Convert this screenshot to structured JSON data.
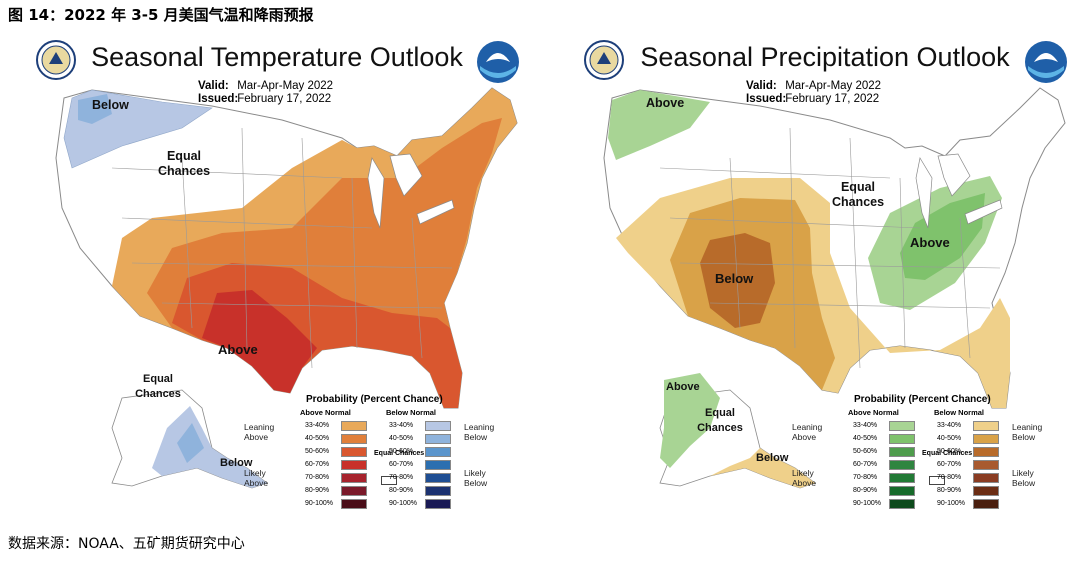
{
  "figure_caption": "图 14：2022 年 3-5 月美国气温和降雨预报",
  "source_note": "数据来源：NOAA、五矿期货研究中心",
  "colors": {
    "above_temp": [
      "#e8a95a",
      "#e07f3a",
      "#d9572f",
      "#c8312a",
      "#a7232d",
      "#7a1a2a",
      "#4a0d18"
    ],
    "below_temp": [
      "#b7c7e4",
      "#8fb3dc",
      "#5b95cc",
      "#2c6fb0",
      "#1f4e93",
      "#1c3270",
      "#1a1a55"
    ],
    "above_precip": [
      "#a8d494",
      "#7fc26c",
      "#4e9c4c",
      "#2f8540",
      "#227a35",
      "#176a2b",
      "#0d4a1c"
    ],
    "below_precip": [
      "#efd08a",
      "#d9a248",
      "#b86b2a",
      "#a85a2f",
      "#8a3c22",
      "#6b2d14",
      "#4a1f0f"
    ]
  },
  "temperature": {
    "title": "Seasonal Temperature Outlook",
    "valid_label": "Valid:",
    "valid_value": "Mar-Apr-May 2022",
    "issued_label": "Issued:",
    "issued_value": "February 17, 2022",
    "labels": {
      "below": "Below",
      "equal": "Equal Chances",
      "above": "Above",
      "ak_equal": "Equal Chances",
      "ak_below": "Below"
    },
    "legend": {
      "title": "Probability (Percent Chance)",
      "left_head": "Above Normal",
      "right_head": "Below Normal",
      "ranges": [
        "33-40%",
        "40-50%",
        "50-60%",
        "60-70%",
        "70-80%",
        "80-90%",
        "90-100%"
      ],
      "leaning_left": "Leaning Above",
      "likely_left": "Likely Above",
      "leaning_right": "Leaning Below",
      "likely_right": "Likely Below",
      "equal_chances": "Equal Chances"
    }
  },
  "precipitation": {
    "title": "Seasonal Precipitation Outlook",
    "valid_label": "Valid:",
    "valid_value": "Mar-Apr-May 2022",
    "issued_label": "Issued:",
    "issued_value": "February 17, 2022",
    "labels": {
      "above_nw": "Above",
      "equal": "Equal Chances",
      "below": "Below",
      "above_ov": "Above",
      "ak_above": "Above",
      "ak_equal": "Equal Chances",
      "ak_below": "Below"
    },
    "legend": {
      "title": "Probability (Percent Chance)",
      "left_head": "Above Normal",
      "right_head": "Below Normal",
      "ranges": [
        "33-40%",
        "40-50%",
        "50-60%",
        "60-70%",
        "70-80%",
        "80-90%",
        "90-100%"
      ],
      "leaning_left": "Leaning Above",
      "likely_left": "Likely Above",
      "leaning_right": "Leaning Below",
      "likely_right": "Likely Below",
      "equal_chances": "Equal Chances"
    }
  }
}
